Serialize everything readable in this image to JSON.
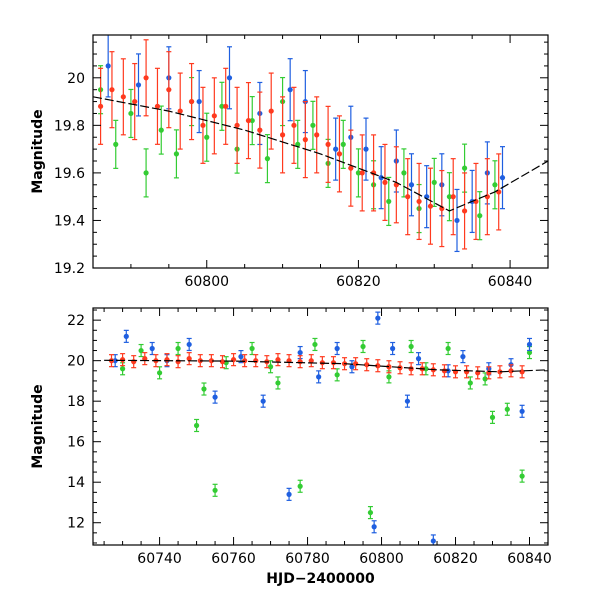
{
  "chart_data": [
    {
      "type": "scatter",
      "panel": "top",
      "title": "",
      "xlabel": "",
      "ylabel": "Magnitude",
      "xlim": [
        60785,
        60845
      ],
      "ylim": [
        20.18,
        19.2
      ],
      "y_inverted": true,
      "xticks": [
        60800,
        60820,
        60840
      ],
      "yticks": [
        19.2,
        19.4,
        19.6,
        19.8,
        20
      ],
      "series": [
        {
          "color": "#33cc33",
          "points": [
            [
              60786,
              19.95
            ],
            [
              60788,
              19.72
            ],
            [
              60790,
              19.85
            ],
            [
              60792,
              19.6
            ],
            [
              60794,
              19.78
            ],
            [
              60796,
              19.68
            ],
            [
              60798,
              19.9
            ],
            [
              60800,
              19.75
            ],
            [
              60802,
              19.88
            ],
            [
              60804,
              19.7
            ],
            [
              60806,
              19.82
            ],
            [
              60808,
              19.66
            ],
            [
              60810,
              19.9
            ],
            [
              60812,
              19.72
            ],
            [
              60814,
              19.8
            ],
            [
              60816,
              19.64
            ],
            [
              60818,
              19.72
            ],
            [
              60820,
              19.6
            ],
            [
              60822,
              19.55
            ],
            [
              60824,
              19.48
            ],
            [
              60826,
              19.6
            ],
            [
              60828,
              19.45
            ],
            [
              60830,
              19.56
            ],
            [
              60832,
              19.5
            ],
            [
              60834,
              19.62
            ],
            [
              60836,
              19.42
            ],
            [
              60838,
              19.55
            ]
          ]
        },
        {
          "color": "#1f5fe0",
          "points": [
            [
              60787,
              20.05
            ],
            [
              60791,
              19.97
            ],
            [
              60795,
              20.0
            ],
            [
              60799,
              19.9
            ],
            [
              60803,
              20.0
            ],
            [
              60807,
              19.85
            ],
            [
              60811,
              19.95
            ],
            [
              60813,
              19.9
            ],
            [
              60817,
              19.7
            ],
            [
              60819,
              19.75
            ],
            [
              60821,
              19.7
            ],
            [
              60823,
              19.58
            ],
            [
              60825,
              19.65
            ],
            [
              60827,
              19.55
            ],
            [
              60829,
              19.5
            ],
            [
              60831,
              19.55
            ],
            [
              60833,
              19.4
            ],
            [
              60835,
              19.48
            ],
            [
              60837,
              19.6
            ],
            [
              60839,
              19.58
            ]
          ]
        },
        {
          "color": "#ff3a1f",
          "points": [
            [
              60786,
              19.88
            ],
            [
              60787.5,
              19.95
            ],
            [
              60789,
              19.92
            ],
            [
              60790.5,
              19.9
            ],
            [
              60792,
              20.0
            ],
            [
              60793.5,
              19.88
            ],
            [
              60795,
              19.95
            ],
            [
              60796.5,
              19.86
            ],
            [
              60798,
              19.9
            ],
            [
              60799.5,
              19.8
            ],
            [
              60801,
              19.84
            ],
            [
              60802.5,
              19.88
            ],
            [
              60804,
              19.8
            ],
            [
              60805.5,
              19.82
            ],
            [
              60807,
              19.78
            ],
            [
              60808.5,
              19.86
            ],
            [
              60810,
              19.76
            ],
            [
              60811.5,
              19.8
            ],
            [
              60813,
              19.74
            ],
            [
              60814.5,
              19.76
            ],
            [
              60816,
              19.72
            ],
            [
              60817.5,
              19.68
            ],
            [
              60819,
              19.62
            ],
            [
              60820.5,
              19.6
            ],
            [
              60822,
              19.6
            ],
            [
              60823.5,
              19.56
            ],
            [
              60825,
              19.55
            ],
            [
              60826.5,
              19.5
            ],
            [
              60828,
              19.48
            ],
            [
              60829.5,
              19.46
            ],
            [
              60831,
              19.45
            ],
            [
              60832.5,
              19.5
            ],
            [
              60834,
              19.44
            ],
            [
              60835.5,
              19.48
            ],
            [
              60837,
              19.5
            ],
            [
              60838.5,
              19.52
            ]
          ]
        }
      ],
      "model_curve": {
        "color": "#000000",
        "points": [
          [
            60785,
            19.92
          ],
          [
            60795,
            19.86
          ],
          [
            60805,
            19.78
          ],
          [
            60815,
            19.68
          ],
          [
            60825,
            19.56
          ],
          [
            60832,
            19.44
          ],
          [
            60838,
            19.52
          ],
          [
            60845,
            19.65
          ]
        ]
      }
    },
    {
      "type": "scatter",
      "panel": "bottom",
      "title": "",
      "xlabel": "HJD−2400000",
      "ylabel": "Magnitude",
      "xlim": [
        60722,
        60845
      ],
      "ylim": [
        22.6,
        10.9
      ],
      "y_inverted": true,
      "xticks": [
        60740,
        60760,
        60780,
        60800,
        60820,
        60840
      ],
      "yticks": [
        12,
        14,
        16,
        18,
        20,
        22
      ],
      "series": [
        {
          "color": "#33cc33",
          "points": [
            [
              60730,
              19.6
            ],
            [
              60735,
              20.5
            ],
            [
              60740,
              19.4
            ],
            [
              60745,
              20.6
            ],
            [
              60750,
              16.8
            ],
            [
              60752,
              18.6
            ],
            [
              60755,
              13.6
            ],
            [
              60758,
              19.9
            ],
            [
              60765,
              20.6
            ],
            [
              60770,
              19.7
            ],
            [
              60772,
              18.9
            ],
            [
              60778,
              13.8
            ],
            [
              60782,
              20.8
            ],
            [
              60788,
              19.3
            ],
            [
              60795,
              20.7
            ],
            [
              60797,
              12.5
            ],
            [
              60802,
              19.2
            ],
            [
              60808,
              20.7
            ],
            [
              60812,
              19.6
            ],
            [
              60818,
              20.6
            ],
            [
              60824,
              18.9
            ],
            [
              60828,
              19.1
            ],
            [
              60830,
              17.2
            ],
            [
              60834,
              17.6
            ],
            [
              60838,
              14.3
            ],
            [
              60840,
              20.4
            ]
          ]
        },
        {
          "color": "#1f5fe0",
          "points": [
            [
              60728,
              20.0
            ],
            [
              60731,
              21.2
            ],
            [
              60738,
              20.6
            ],
            [
              60742,
              20.0
            ],
            [
              60748,
              20.8
            ],
            [
              60755,
              18.2
            ],
            [
              60762,
              20.2
            ],
            [
              60768,
              18.0
            ],
            [
              60775,
              13.4
            ],
            [
              60778,
              20.4
            ],
            [
              60783,
              19.2
            ],
            [
              60788,
              20.6
            ],
            [
              60792,
              19.7
            ],
            [
              60798,
              11.8
            ],
            [
              60799,
              22.1
            ],
            [
              60803,
              20.6
            ],
            [
              60807,
              18.0
            ],
            [
              60810,
              20.1
            ],
            [
              60814,
              11.1
            ],
            [
              60818,
              19.5
            ],
            [
              60822,
              20.2
            ],
            [
              60829,
              19.6
            ],
            [
              60835,
              19.8
            ],
            [
              60838,
              17.5
            ],
            [
              60840,
              20.8
            ]
          ]
        },
        {
          "color": "#ff3a1f",
          "points": [
            [
              60727,
              20.0
            ],
            [
              60730,
              20.05
            ],
            [
              60733,
              19.95
            ],
            [
              60736,
              20.1
            ],
            [
              60739,
              20.0
            ],
            [
              60742,
              20.05
            ],
            [
              60745,
              19.95
            ],
            [
              60748,
              20.1
            ],
            [
              60751,
              20.0
            ],
            [
              60754,
              20.0
            ],
            [
              60757,
              19.95
            ],
            [
              60760,
              20.05
            ],
            [
              60763,
              20.0
            ],
            [
              60766,
              20.0
            ],
            [
              60769,
              19.95
            ],
            [
              60772,
              20.05
            ],
            [
              60775,
              20.0
            ],
            [
              60778,
              19.95
            ],
            [
              60781,
              20.0
            ],
            [
              60784,
              19.9
            ],
            [
              60787,
              19.9
            ],
            [
              60790,
              19.85
            ],
            [
              60793,
              19.85
            ],
            [
              60796,
              19.8
            ],
            [
              60799,
              19.75
            ],
            [
              60802,
              19.7
            ],
            [
              60805,
              19.65
            ],
            [
              60808,
              19.6
            ],
            [
              60811,
              19.6
            ],
            [
              60814,
              19.55
            ],
            [
              60817,
              19.5
            ],
            [
              60820,
              19.45
            ],
            [
              60823,
              19.45
            ],
            [
              60826,
              19.4
            ],
            [
              60829,
              19.4
            ],
            [
              60832,
              19.45
            ],
            [
              60835,
              19.5
            ],
            [
              60838,
              19.45
            ]
          ]
        }
      ],
      "model_curve": {
        "color": "#000000",
        "points": [
          [
            60725,
            20.02
          ],
          [
            60760,
            19.98
          ],
          [
            60790,
            19.85
          ],
          [
            60815,
            19.55
          ],
          [
            60832,
            19.45
          ],
          [
            60845,
            19.55
          ]
        ]
      }
    }
  ]
}
